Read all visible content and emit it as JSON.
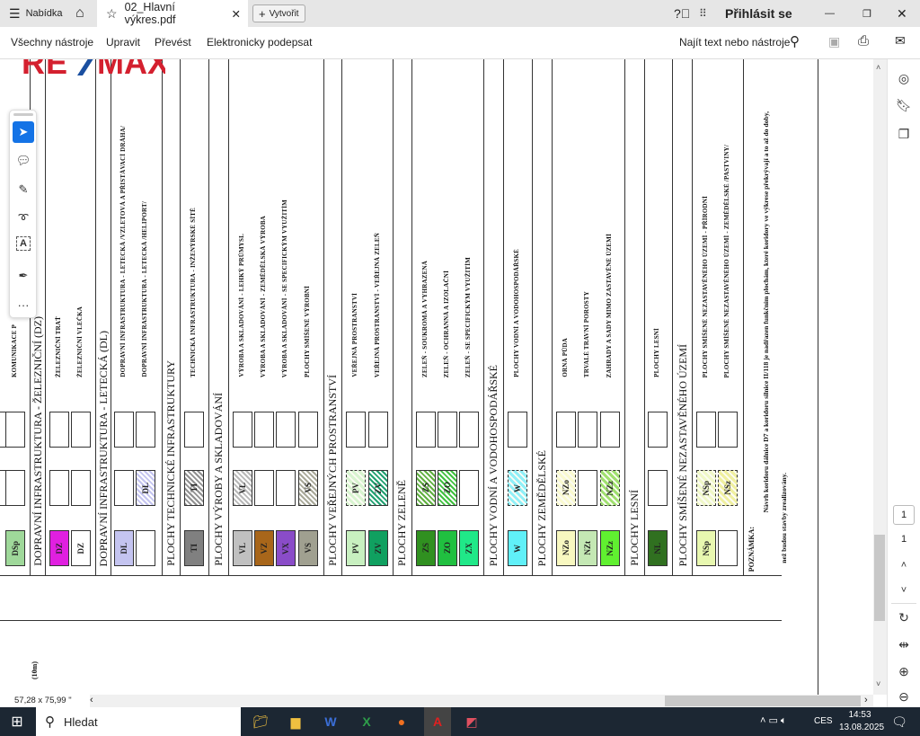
{
  "tabbar": {
    "menu_label": "Nabídka",
    "tab_title": "02_Hlavní výkres.pdf",
    "new_label": "Vytvořit",
    "signin": "Přihlásit se"
  },
  "menubar": {
    "items": [
      "Všechny nástroje",
      "Upravit",
      "Převést",
      "Elektronicky podepsat"
    ],
    "search": "Najít text nebo nástroje"
  },
  "logo": "RE/MAX",
  "legend": {
    "partial_label": "KOMUNIKACE P",
    "columns": [
      {
        "type": "item",
        "label": "KOMUNIKACE P",
        "b2": {
          "style": "empty"
        },
        "b3": {
          "code": "DSp",
          "color": "#9fd89a",
          "style": "fill"
        }
      },
      {
        "type": "header",
        "label": "DOPRAVNÍ INFRASTRUKTURA - ŽELEZNIČNÍ (DZ)"
      },
      {
        "type": "item",
        "label": "ŽELEZNIČNÍ TRAŤ",
        "b2": {
          "style": "empty"
        },
        "b3": {
          "code": "DZ",
          "color": "#e020e0",
          "style": "fill"
        }
      },
      {
        "type": "item",
        "label": "ŽELEZNIČNÍ VLEČKA",
        "b2": {
          "style": "empty"
        },
        "b3": {
          "code": "DZ",
          "color": "#ffffff",
          "style": "fill"
        }
      },
      {
        "type": "header",
        "label": "DOPRAVNÍ INFRASTRUKTURA - LETECKÁ (DL)"
      },
      {
        "type": "item",
        "label": "DOPRAVNÍ INFRASTRUKTURA - LETECKÁ /VZLETOVÁ A PŘISTÁVACÍ DRÁHA/",
        "b2": {
          "style": "empty"
        },
        "b3": {
          "code": "DL",
          "color": "#c4c4f0",
          "style": "fill"
        }
      },
      {
        "type": "item",
        "label": "DOPRAVNÍ INFRASTRUKTURA - LETECKÁ /HELIPORT/",
        "b2": {
          "code": "DL",
          "color": "#c4c4f0",
          "style": "hatch"
        },
        "b3": {
          "style": "empty"
        }
      },
      {
        "type": "header",
        "label": "PLOCHY TECHNICKÉ INFRASTRUKTURY"
      },
      {
        "type": "item",
        "label": "TECHNICKÁ INFRASTRUKTURA - INŽENÝRSKÉ SÍTĚ",
        "b2": {
          "code": "TI",
          "color": "#909090",
          "style": "hatch"
        },
        "b3": {
          "code": "TI",
          "color": "#808080",
          "style": "fill"
        }
      },
      {
        "type": "header",
        "label": "PLOCHY VÝROBY A SKLADOVÁNÍ"
      },
      {
        "type": "item",
        "label": "VÝROBA A SKLADOVÁNÍ - LEHKÝ PRŮMYSL",
        "b2": {
          "code": "VL",
          "color": "#b8b8b8",
          "style": "hatch"
        },
        "b3": {
          "code": "VL",
          "color": "#c0c0c0",
          "style": "fill"
        }
      },
      {
        "type": "item",
        "label": "VÝROBA A SKLADOVÁNÍ - ZEMĚDĚLSKÁ VÝROBA",
        "b2": {
          "style": "empty"
        },
        "b3": {
          "code": "VZ",
          "color": "#a8661a",
          "style": "fill"
        }
      },
      {
        "type": "item",
        "label": "VÝROBA A SKLADOVÁNÍ - SE SPECIFICKÝM VYUŽITÍM",
        "b2": {
          "style": "empty"
        },
        "b3": {
          "code": "VX",
          "color": "#8a4cc8",
          "style": "fill"
        }
      },
      {
        "type": "item",
        "label": "PLOCHY SMÍŠENÉ VÝROBNÍ",
        "b2": {
          "code": "VS",
          "color": "#a8a898",
          "style": "hatch"
        },
        "b3": {
          "code": "VS",
          "color": "#a0a090",
          "style": "fill"
        }
      },
      {
        "type": "header",
        "label": "PLOCHY VEŘEJNÝCH PROSTRANSTVÍ"
      },
      {
        "type": "item",
        "label": "VEŘEJNÁ PROSTRANSTVÍ",
        "b2": {
          "code": "PV",
          "color": "#d8f4d0",
          "style": "dashed"
        },
        "b3": {
          "code": "PV",
          "color": "#c8f0c0",
          "style": "fill"
        }
      },
      {
        "type": "item",
        "label": "VEŘEJNÁ PROSTRANSTVÍ - VEŘEJNÁ ZELEŇ",
        "b2": {
          "code": "ZV",
          "color": "#20a070",
          "style": "hatch"
        },
        "b3": {
          "code": "ZV",
          "color": "#10a060",
          "style": "fill"
        }
      },
      {
        "type": "header",
        "label": "PLOCHY ZELENĚ"
      },
      {
        "type": "item",
        "label": "ZELEŇ - SOUKROMÁ A VYHRAZENÁ",
        "b2": {
          "code": "ZS",
          "color": "#60b040",
          "style": "hatch"
        },
        "b3": {
          "code": "ZS",
          "color": "#309020",
          "style": "fill"
        }
      },
      {
        "type": "item",
        "label": "ZELEŇ - OCHRANNÁ A IZOLAČNÍ",
        "b2": {
          "code": "ZO",
          "color": "#40c040",
          "style": "hatch"
        },
        "b3": {
          "code": "ZO",
          "color": "#20c040",
          "style": "fill"
        }
      },
      {
        "type": "item",
        "label": "ZELEŇ - SE SPECIFICKÝM VYUŽITÍM",
        "b2": {
          "style": "empty"
        },
        "b3": {
          "code": "ZX",
          "color": "#20e888",
          "style": "fill"
        }
      },
      {
        "type": "header",
        "label": "PLOCHY VODNÍ A VODOHOSPODÁŘSKÉ"
      },
      {
        "type": "item",
        "label": "PLOCHY VODNÍ A VODOHOSPODÁŘSKÉ",
        "b2": {
          "code": "W",
          "color": "#90f0f8",
          "style": "dashed"
        },
        "b3": {
          "code": "W",
          "color": "#60f0f8",
          "style": "fill"
        }
      },
      {
        "type": "header",
        "label": "PLOCHY ZEMĚDĚLSKÉ"
      },
      {
        "type": "item",
        "label": "ORNÁ PŮDA",
        "b2": {
          "code": "NZo",
          "color": "#fafad0",
          "style": "dashed"
        },
        "b3": {
          "code": "NZo",
          "color": "#f8f8c0",
          "style": "fill"
        }
      },
      {
        "type": "item",
        "label": "TRVALÉ TRAVNÍ POROSTY",
        "b2": {
          "style": "empty"
        },
        "b3": {
          "code": "NZt",
          "color": "#c4e8b4",
          "style": "fill"
        }
      },
      {
        "type": "item",
        "label": "ZAHRADY A SADY MIMO ZASTAVĚNÉ ÚZEMÍ",
        "b2": {
          "code": "NZz",
          "color": "#a0e070",
          "style": "dashed"
        },
        "b3": {
          "code": "NZz",
          "color": "#60f030",
          "style": "fill"
        }
      },
      {
        "type": "header",
        "label": "PLOCHY LESNÍ"
      },
      {
        "type": "item",
        "label": "PLOCHY LESNÍ",
        "b2": {
          "style": "empty"
        },
        "b3": {
          "code": "NL",
          "color": "#307020",
          "style": "fill"
        }
      },
      {
        "type": "header",
        "label": "PLOCHY SMÍŠENÉ NEZASTAVĚNÉHO ÚZEMÍ"
      },
      {
        "type": "item",
        "label": "PLOCHY SMÍŠENÉ NEZASTAVĚNÉHO ÚZEMÍ - PŘÍRODNÍ",
        "b2": {
          "code": "NSp",
          "color": "#f0f8c8",
          "style": "dashed"
        },
        "b3": {
          "code": "NSp",
          "color": "#e8f8b0",
          "style": "fill"
        }
      },
      {
        "type": "item",
        "label": "PLOCHY SMÍŠENÉ NEZASTAVĚNÉHO ÚZEMÍ - ZEMĚDĚLSKÉ /PASTVINY/",
        "b2": {
          "code": "NSz",
          "color": "#f0f0a0",
          "style": "dashed"
        },
        "b3": {
          "style": "empty"
        }
      }
    ],
    "note_title": "POZNÁMKA:",
    "note_lines": [
      "Návrh koridoru dálnice D7 a koridoru silnice II/118 je nadřazen funkčním plochám, které koridory ve výkrese překrývají a to až do doby,",
      "než budou stavby zrealizovány."
    ],
    "scale_fragment": "(10m)"
  },
  "status": {
    "page_size": "57,28 x 75,99 \""
  },
  "pager": {
    "current": "1",
    "total": "1"
  },
  "taskbar": {
    "search": "Hledat",
    "lang": "CES",
    "time": "14:53",
    "date": "13.08.2025"
  }
}
